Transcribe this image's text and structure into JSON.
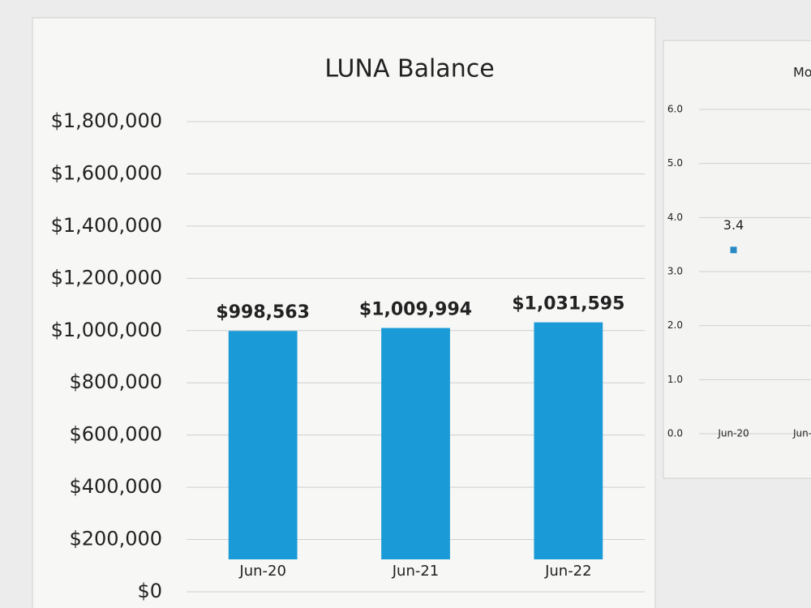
{
  "chart_data": [
    {
      "type": "bar",
      "title": "LUNA Balance",
      "categories": [
        "Jun-20",
        "Jun-21",
        "Jun-22"
      ],
      "values": [
        998563,
        1009994,
        1031595
      ],
      "value_labels": [
        "$998,563",
        "$1,009,994",
        "$1,031,595"
      ],
      "color": "#1a9ad6",
      "ylim": [
        0,
        1800000
      ],
      "yticks": [
        {
          "value": 0,
          "label": "$0"
        },
        {
          "value": 200000,
          "label": "$200,000"
        },
        {
          "value": 400000,
          "label": "$400,000"
        },
        {
          "value": 600000,
          "label": "$600,000"
        },
        {
          "value": 800000,
          "label": "$800,000"
        },
        {
          "value": 1000000,
          "label": "$1,000,000"
        },
        {
          "value": 1200000,
          "label": "$1,200,000"
        },
        {
          "value": 1400000,
          "label": "$1,400,000"
        },
        {
          "value": 1600000,
          "label": "$1,600,000"
        },
        {
          "value": 1800000,
          "label": "$1,800,000"
        }
      ],
      "grid": true
    },
    {
      "type": "line",
      "title": "Mo",
      "categories": [
        "Jun-20",
        "Jun-"
      ],
      "values": [
        3.4,
        null
      ],
      "color": "#2a88c4",
      "ylim": [
        0,
        6
      ],
      "yticks": [
        {
          "value": 0,
          "label": "0.0"
        },
        {
          "value": 1,
          "label": "1.0"
        },
        {
          "value": 2,
          "label": "2.0"
        },
        {
          "value": 3,
          "label": "3.0"
        },
        {
          "value": 4,
          "label": "4.0"
        },
        {
          "value": 5,
          "label": "5.0"
        },
        {
          "value": 6,
          "label": "6.0"
        }
      ],
      "grid": true
    }
  ]
}
